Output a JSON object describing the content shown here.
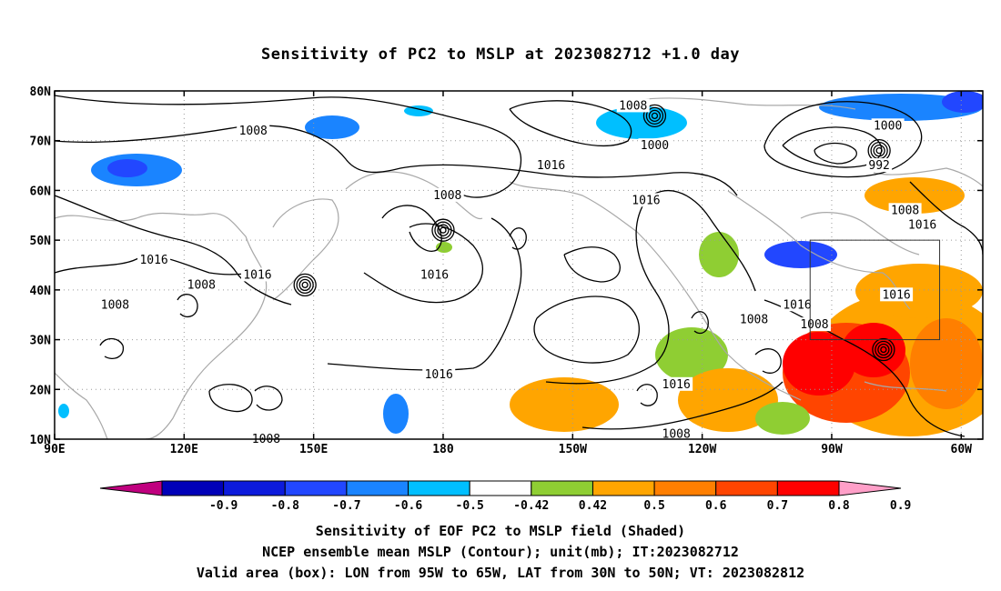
{
  "title": "Sensitivity of PC2 to MSLP at 2023082712 +1.0 day",
  "map": {
    "lon_range": [
      90,
      305
    ],
    "lat_range": [
      10,
      80
    ],
    "lon_ticks": [
      {
        "lon": 90,
        "label": "90E"
      },
      {
        "lon": 120,
        "label": "120E"
      },
      {
        "lon": 150,
        "label": "150E"
      },
      {
        "lon": 180,
        "label": "180"
      },
      {
        "lon": 210,
        "label": "150W"
      },
      {
        "lon": 240,
        "label": "120W"
      },
      {
        "lon": 270,
        "label": "90W"
      },
      {
        "lon": 300,
        "label": "60W"
      }
    ],
    "lat_ticks": [
      {
        "lat": 10,
        "label": "10N"
      },
      {
        "lat": 20,
        "label": "20N"
      },
      {
        "lat": 30,
        "label": "30N"
      },
      {
        "lat": 40,
        "label": "40N"
      },
      {
        "lat": 50,
        "label": "50N"
      },
      {
        "lat": 60,
        "label": "60N"
      },
      {
        "lat": 70,
        "label": "70N"
      },
      {
        "lat": 80,
        "label": "80N"
      }
    ],
    "grid": true,
    "valid_box": {
      "lon_min": 265,
      "lon_max": 295,
      "lat_min": 30,
      "lat_max": 50
    },
    "contour_labels": [
      {
        "text": "1008",
        "lon": 136,
        "lat": 72
      },
      {
        "text": "1008",
        "lon": 224,
        "lat": 77
      },
      {
        "text": "1000",
        "lon": 229,
        "lat": 69
      },
      {
        "text": "1000",
        "lon": 283,
        "lat": 73
      },
      {
        "text": "992",
        "lon": 281,
        "lat": 65
      },
      {
        "text": "1016",
        "lon": 205,
        "lat": 65
      },
      {
        "text": "1016",
        "lon": 227,
        "lat": 58
      },
      {
        "text": "1008",
        "lon": 181,
        "lat": 59
      },
      {
        "text": "1016",
        "lon": 113,
        "lat": 46
      },
      {
        "text": "1016",
        "lon": 137,
        "lat": 43
      },
      {
        "text": "1008",
        "lon": 124,
        "lat": 41
      },
      {
        "text": "1008",
        "lon": 104,
        "lat": 37
      },
      {
        "text": "1016",
        "lon": 178,
        "lat": 43
      },
      {
        "text": "1016",
        "lon": 179,
        "lat": 23
      },
      {
        "text": "1016",
        "lon": 234,
        "lat": 21
      },
      {
        "text": "1008",
        "lon": 234,
        "lat": 11
      },
      {
        "text": "1008",
        "lon": 139,
        "lat": 10
      },
      {
        "text": "1008",
        "lon": 252,
        "lat": 34
      },
      {
        "text": "1016",
        "lon": 262,
        "lat": 37
      },
      {
        "text": "1008",
        "lon": 266,
        "lat": 33
      },
      {
        "text": "1016",
        "lon": 285,
        "lat": 39
      },
      {
        "text": "1008",
        "lon": 287,
        "lat": 56
      },
      {
        "text": "1016",
        "lon": 291,
        "lat": 53
      }
    ],
    "lows": [
      {
        "lon": 148,
        "lat": 41
      },
      {
        "lon": 282,
        "lat": 28
      },
      {
        "lon": 281,
        "lat": 68
      },
      {
        "lon": 229,
        "lat": 75
      },
      {
        "lon": 180,
        "lat": 52
      }
    ]
  },
  "colorbar": {
    "colors": [
      "#c0007f",
      "#0000b8",
      "#0d1bdc",
      "#2247ff",
      "#1a84ff",
      "#00bfff",
      "#ffffff",
      "#8fce33",
      "#ffa500",
      "#ff7f00",
      "#ff4500",
      "#ff0000",
      "#ff9fc8"
    ],
    "labels": [
      "-0.9",
      "-0.8",
      "-0.7",
      "-0.6",
      "-0.5",
      "-0.42",
      "0.42",
      "0.5",
      "0.6",
      "0.7",
      "0.8",
      "0.9"
    ]
  },
  "captions": [
    "Sensitivity of EOF PC2 to MSLP field (Shaded)",
    "NCEP ensemble mean MSLP (Contour); unit(mb); IT:2023082712",
    "Valid area (box): LON from 95W to 65W, LAT from 30N to 50N; VT: 2023082812"
  ]
}
